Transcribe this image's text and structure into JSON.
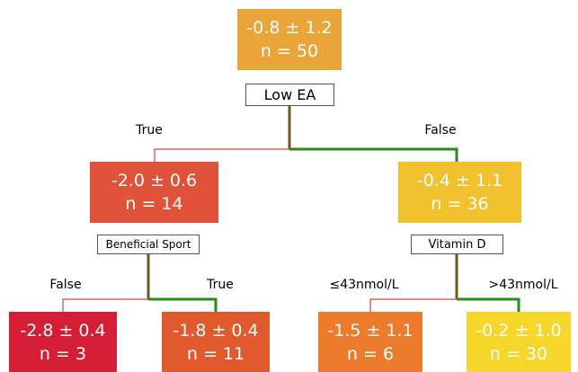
{
  "nodes": [
    {
      "line1": "-0.8 ± 1.2",
      "line2": "n = 50"
    },
    {
      "line1": "-2.0 ± 0.6",
      "line2": "n = 14"
    },
    {
      "line1": "-0.4 ± 1.1",
      "line2": "n = 36"
    },
    {
      "line1": "-2.8 ± 0.4",
      "line2": "n = 3"
    },
    {
      "line1": "-1.8 ± 0.4",
      "line2": "n = 11"
    },
    {
      "line1": "-1.5 ± 1.1",
      "line2": "n = 6"
    },
    {
      "line1": "-0.2 ± 1.0",
      "line2": "n = 30"
    }
  ],
  "splits": [
    "Low EA",
    "Beneficial Sport",
    "Vitamin D"
  ],
  "edges": [
    "True",
    "False",
    "False",
    "True",
    "≤43nmol/L",
    ">43nmol/L"
  ]
}
